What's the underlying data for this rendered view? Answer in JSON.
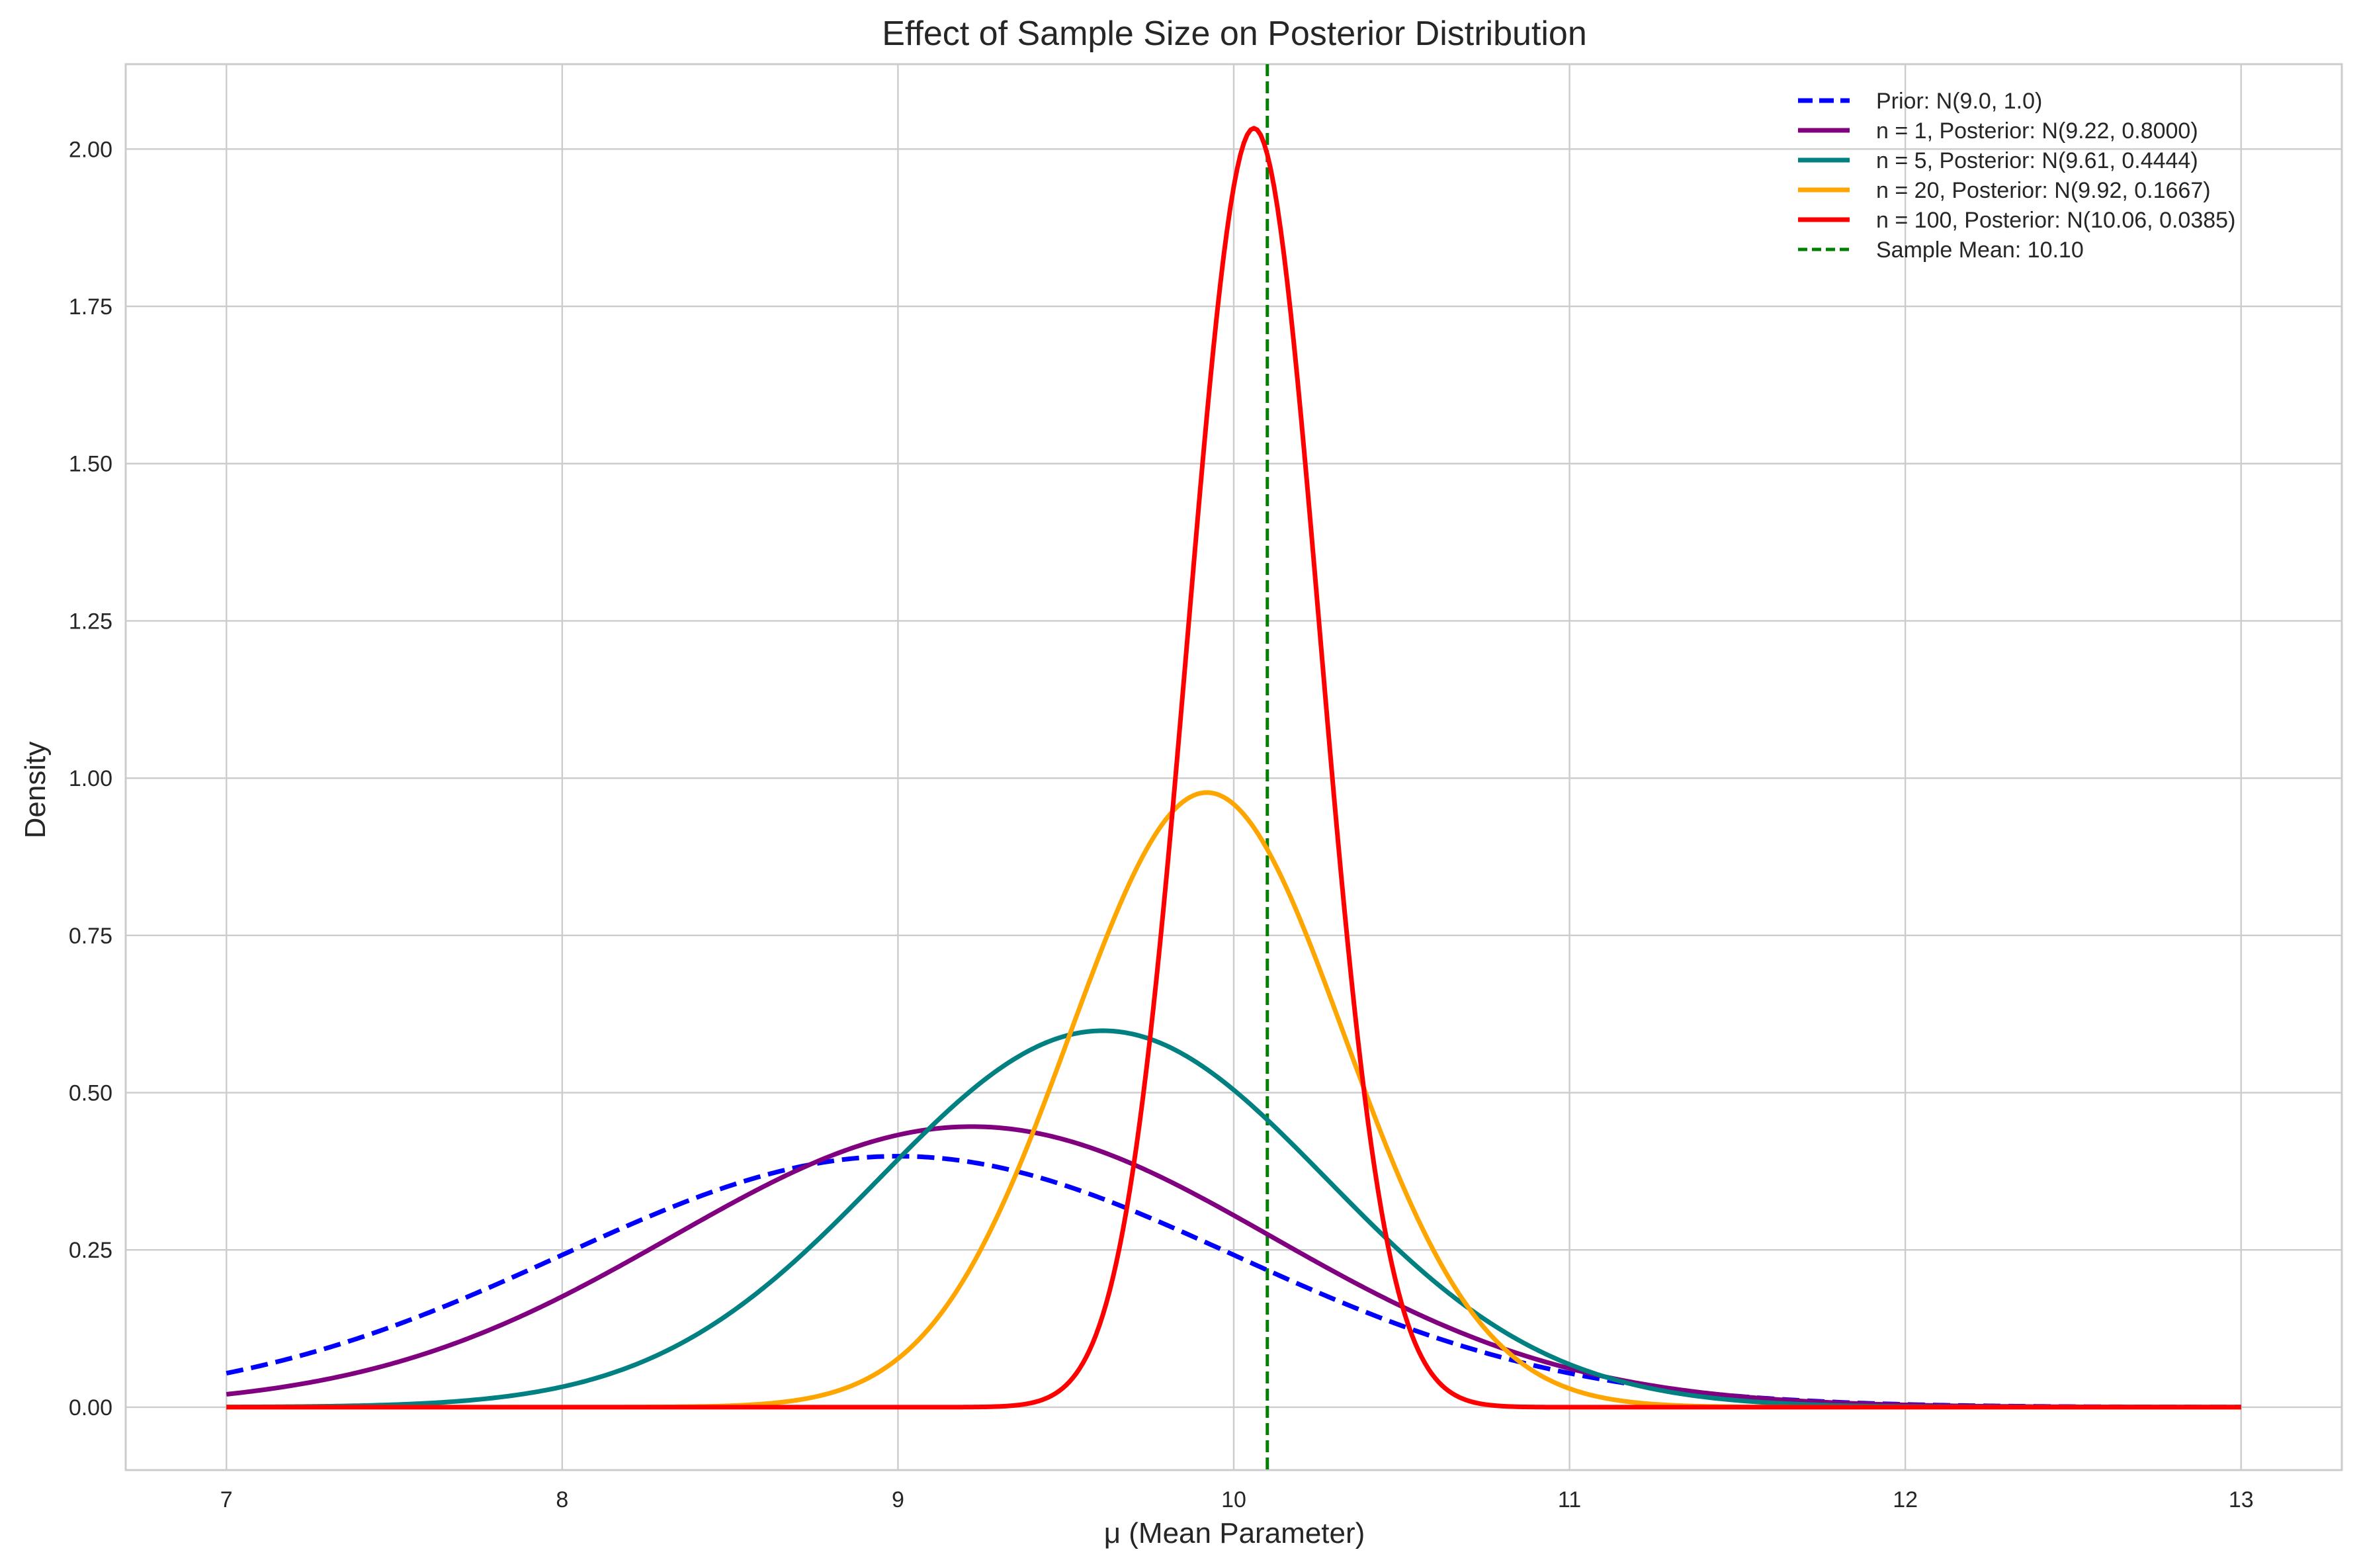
{
  "chart_data": {
    "type": "line",
    "title": "Effect of Sample Size on Posterior Distribution",
    "xlabel": "μ (Mean Parameter)",
    "ylabel": "Density",
    "xlim": [
      6.7,
      13.3
    ],
    "ylim": [
      -0.1,
      2.135
    ],
    "x_ticks": [
      "7",
      "8",
      "9",
      "10",
      "11",
      "12",
      "13"
    ],
    "y_ticks": [
      "0.00",
      "0.25",
      "0.50",
      "0.75",
      "1.00",
      "1.25",
      "1.50",
      "1.75",
      "2.00"
    ],
    "x_tick_values": [
      7,
      8,
      9,
      10,
      11,
      12,
      13
    ],
    "y_tick_values": [
      0,
      0.25,
      0.5,
      0.75,
      1.0,
      1.25,
      1.5,
      1.75,
      2.0
    ],
    "grid": true,
    "legend_position": "top-right",
    "x_range": [
      7,
      13
    ],
    "series": [
      {
        "name": "Prior: N(9.0, 1.0)",
        "mean": 9.0,
        "variance": 1.0,
        "color": "#0000ff",
        "dashed": true
      },
      {
        "name": "n = 1, Posterior: N(9.22, 0.8000)",
        "mean": 9.22,
        "variance": 0.8,
        "color": "#800080",
        "dashed": false
      },
      {
        "name": "n = 5, Posterior: N(9.61, 0.4444)",
        "mean": 9.61,
        "variance": 0.4444,
        "color": "#008080",
        "dashed": false
      },
      {
        "name": "n = 20, Posterior: N(9.92, 0.1667)",
        "mean": 9.92,
        "variance": 0.1667,
        "color": "#ffa500",
        "dashed": false
      },
      {
        "name": "n = 100, Posterior: N(10.06, 0.0385)",
        "mean": 10.06,
        "variance": 0.0385,
        "color": "#ff0000",
        "dashed": false
      }
    ],
    "vline": {
      "name": "Sample Mean: 10.10",
      "x": 10.1,
      "color": "#008000",
      "dashed": true
    }
  }
}
